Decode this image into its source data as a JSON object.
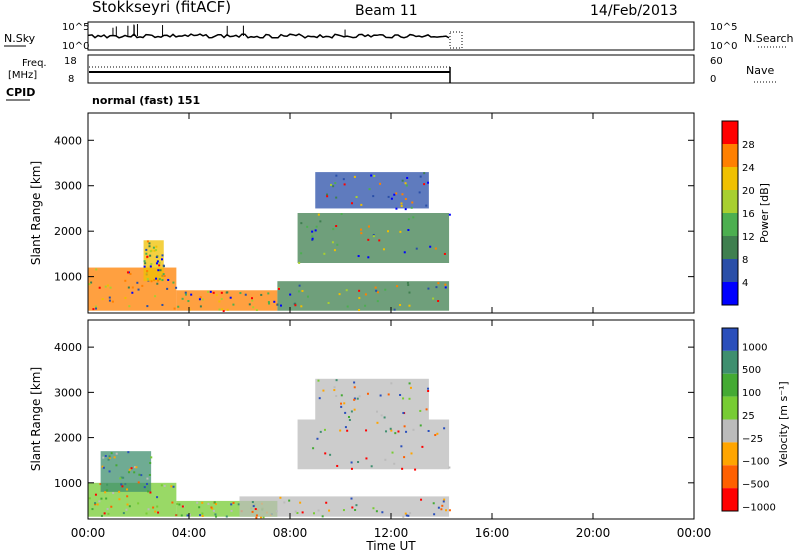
{
  "header": {
    "title": "Stokkseyri (fitACF)",
    "beam": "Beam 11",
    "date": "14/Feb/2013"
  },
  "noise_panel": {
    "left_label": "N.Sky",
    "right_label": "N.Search",
    "left_ticks": [
      "10^5",
      "10^0"
    ],
    "right_ticks": [
      "10^5",
      "10^0"
    ]
  },
  "freq_panel": {
    "left_label_1": "Freq.",
    "left_label_2": "[MHz]",
    "right_label": "Nave",
    "left_ticks": [
      "18",
      "8"
    ],
    "right_ticks": [
      "60",
      "0"
    ]
  },
  "cpid": {
    "label": "CPID",
    "value": "normal (fast) 151"
  },
  "colors": {
    "power_scale": [
      "#0000ff",
      "#2a4fa8",
      "#3f7f4f",
      "#4caf50",
      "#a8d030",
      "#f0c000",
      "#ff8000",
      "#ff0000"
    ],
    "velocity_scale": [
      "#2a4fbb",
      "#3f8f6f",
      "#44aa33",
      "#77cc33",
      "#bbbbbb",
      "#ffa500",
      "#ff6000",
      "#ff0000"
    ]
  },
  "chart_data": [
    {
      "type": "heatmap",
      "name": "power",
      "ylabel": "Slant Range [km]",
      "yticks": [
        "1000",
        "2000",
        "3000",
        "4000"
      ],
      "ylim": [
        200,
        4600
      ],
      "xlim": [
        "00:00",
        "24:00"
      ],
      "colorbar_label": "Power [dB]",
      "colorbar_ticks": [
        "4",
        "8",
        "12",
        "16",
        "20",
        "24",
        "28"
      ],
      "regions": [
        {
          "t0": 0.0,
          "t1": 3.5,
          "r0": 250,
          "r1": 1200,
          "level": 6
        },
        {
          "t0": 3.5,
          "t1": 7.5,
          "r0": 250,
          "r1": 700,
          "level": 6
        },
        {
          "t0": 2.2,
          "t1": 3.0,
          "r0": 900,
          "r1": 1800,
          "level": 5
        },
        {
          "t0": 8.3,
          "t1": 14.3,
          "r0": 1300,
          "r1": 2400,
          "level": 2
        },
        {
          "t0": 9.0,
          "t1": 13.5,
          "r0": 2500,
          "r1": 3300,
          "level": 1
        },
        {
          "t0": 7.5,
          "t1": 14.3,
          "r0": 250,
          "r1": 900,
          "level": 2
        }
      ]
    },
    {
      "type": "heatmap",
      "name": "velocity",
      "xlabel": "Time UT",
      "ylabel": "Slant Range [km]",
      "xticks": [
        "00:00",
        "04:00",
        "08:00",
        "12:00",
        "16:00",
        "20:00",
        "00:00"
      ],
      "yticks": [
        "1000",
        "2000",
        "3000",
        "4000"
      ],
      "ylim": [
        200,
        4600
      ],
      "colorbar_label": "Velocity [m s⁻¹]",
      "colorbar_ticks": [
        "1000",
        "500",
        "100",
        "25",
        "−25",
        "−100",
        "−500",
        "−1000"
      ],
      "regions": [
        {
          "t0": 0.0,
          "t1": 3.5,
          "r0": 250,
          "r1": 1000,
          "level": 3
        },
        {
          "t0": 0.5,
          "t1": 2.5,
          "r0": 800,
          "r1": 1700,
          "level": 1
        },
        {
          "t0": 3.5,
          "t1": 7.5,
          "r0": 250,
          "r1": 600,
          "level": 3
        },
        {
          "t0": 8.3,
          "t1": 14.3,
          "r0": 1300,
          "r1": 2400,
          "level": 4
        },
        {
          "t0": 9.0,
          "t1": 13.5,
          "r0": 2400,
          "r1": 3300,
          "level": 4
        },
        {
          "t0": 6.0,
          "t1": 14.3,
          "r0": 250,
          "r1": 700,
          "level": 4
        }
      ]
    }
  ]
}
